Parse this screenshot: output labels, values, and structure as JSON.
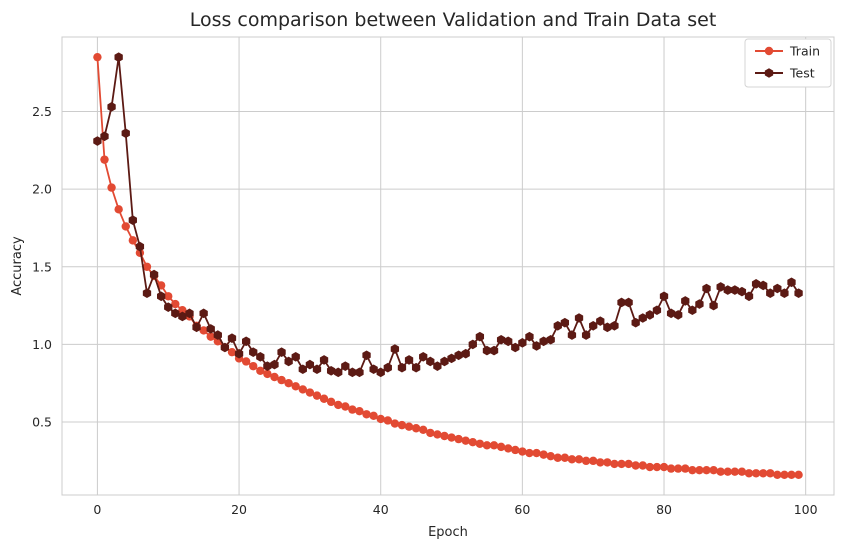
{
  "chart_data": {
    "type": "line",
    "title": "Loss comparison between Validation and Train Data set",
    "xlabel": "Epoch",
    "ylabel": "Accuracy",
    "xlim": [
      -5,
      104
    ],
    "ylim": [
      0.03,
      2.98
    ],
    "xticks": [
      0,
      20,
      40,
      60,
      80,
      100
    ],
    "yticks": [
      0.5,
      1.0,
      1.5,
      2.0,
      2.5
    ],
    "grid": true,
    "legend_position": "top-right",
    "series": [
      {
        "name": "Train",
        "color": "#e24a33",
        "marker": "circle",
        "x": [
          0,
          1,
          2,
          3,
          4,
          5,
          6,
          7,
          8,
          9,
          10,
          11,
          12,
          13,
          14,
          15,
          16,
          17,
          18,
          19,
          20,
          21,
          22,
          23,
          24,
          25,
          26,
          27,
          28,
          29,
          30,
          31,
          32,
          33,
          34,
          35,
          36,
          37,
          38,
          39,
          40,
          41,
          42,
          43,
          44,
          45,
          46,
          47,
          48,
          49,
          50,
          51,
          52,
          53,
          54,
          55,
          56,
          57,
          58,
          59,
          60,
          61,
          62,
          63,
          64,
          65,
          66,
          67,
          68,
          69,
          70,
          71,
          72,
          73,
          74,
          75,
          76,
          77,
          78,
          79,
          80,
          81,
          82,
          83,
          84,
          85,
          86,
          87,
          88,
          89,
          90,
          91,
          92,
          93,
          94,
          95,
          96,
          97,
          98,
          99
        ],
        "values": [
          2.85,
          2.19,
          2.01,
          1.87,
          1.76,
          1.67,
          1.59,
          1.5,
          1.44,
          1.38,
          1.31,
          1.26,
          1.22,
          1.18,
          1.12,
          1.09,
          1.05,
          1.02,
          0.98,
          0.95,
          0.91,
          0.89,
          0.86,
          0.83,
          0.81,
          0.79,
          0.77,
          0.75,
          0.73,
          0.71,
          0.69,
          0.67,
          0.65,
          0.63,
          0.61,
          0.6,
          0.58,
          0.57,
          0.55,
          0.54,
          0.52,
          0.51,
          0.49,
          0.48,
          0.47,
          0.46,
          0.45,
          0.43,
          0.42,
          0.41,
          0.4,
          0.39,
          0.38,
          0.37,
          0.36,
          0.35,
          0.35,
          0.34,
          0.33,
          0.32,
          0.31,
          0.3,
          0.3,
          0.29,
          0.28,
          0.27,
          0.27,
          0.26,
          0.26,
          0.25,
          0.25,
          0.24,
          0.24,
          0.23,
          0.23,
          0.23,
          0.22,
          0.22,
          0.21,
          0.21,
          0.21,
          0.2,
          0.2,
          0.2,
          0.19,
          0.19,
          0.19,
          0.19,
          0.18,
          0.18,
          0.18,
          0.18,
          0.17,
          0.17,
          0.17,
          0.17,
          0.16,
          0.16,
          0.16,
          0.16
        ]
      },
      {
        "name": "Test",
        "color": "#5c1a14",
        "marker": "hexagon",
        "x": [
          0,
          1,
          2,
          3,
          4,
          5,
          6,
          7,
          8,
          9,
          10,
          11,
          12,
          13,
          14,
          15,
          16,
          17,
          18,
          19,
          20,
          21,
          22,
          23,
          24,
          25,
          26,
          27,
          28,
          29,
          30,
          31,
          32,
          33,
          34,
          35,
          36,
          37,
          38,
          39,
          40,
          41,
          42,
          43,
          44,
          45,
          46,
          47,
          48,
          49,
          50,
          51,
          52,
          53,
          54,
          55,
          56,
          57,
          58,
          59,
          60,
          61,
          62,
          63,
          64,
          65,
          66,
          67,
          68,
          69,
          70,
          71,
          72,
          73,
          74,
          75,
          76,
          77,
          78,
          79,
          80,
          81,
          82,
          83,
          84,
          85,
          86,
          87,
          88,
          89,
          90,
          91,
          92,
          93,
          94,
          95,
          96,
          97,
          98,
          99
        ],
        "values": [
          2.31,
          2.34,
          2.53,
          2.85,
          2.36,
          1.8,
          1.63,
          1.33,
          1.45,
          1.31,
          1.24,
          1.2,
          1.18,
          1.2,
          1.11,
          1.2,
          1.1,
          1.06,
          0.98,
          1.04,
          0.94,
          1.02,
          0.95,
          0.92,
          0.86,
          0.87,
          0.95,
          0.89,
          0.92,
          0.84,
          0.87,
          0.84,
          0.9,
          0.83,
          0.82,
          0.86,
          0.82,
          0.82,
          0.93,
          0.84,
          0.82,
          0.85,
          0.97,
          0.85,
          0.9,
          0.85,
          0.92,
          0.89,
          0.86,
          0.89,
          0.91,
          0.93,
          0.94,
          1.0,
          1.05,
          0.96,
          0.96,
          1.03,
          1.02,
          0.98,
          1.01,
          1.05,
          0.99,
          1.02,
          1.03,
          1.12,
          1.14,
          1.06,
          1.17,
          1.06,
          1.12,
          1.15,
          1.11,
          1.12,
          1.27,
          1.27,
          1.14,
          1.17,
          1.19,
          1.22,
          1.31,
          1.2,
          1.19,
          1.28,
          1.22,
          1.26,
          1.36,
          1.25,
          1.37,
          1.35,
          1.35,
          1.34,
          1.31,
          1.39,
          1.38,
          1.33,
          1.36,
          1.33,
          1.4,
          1.33
        ]
      }
    ]
  }
}
